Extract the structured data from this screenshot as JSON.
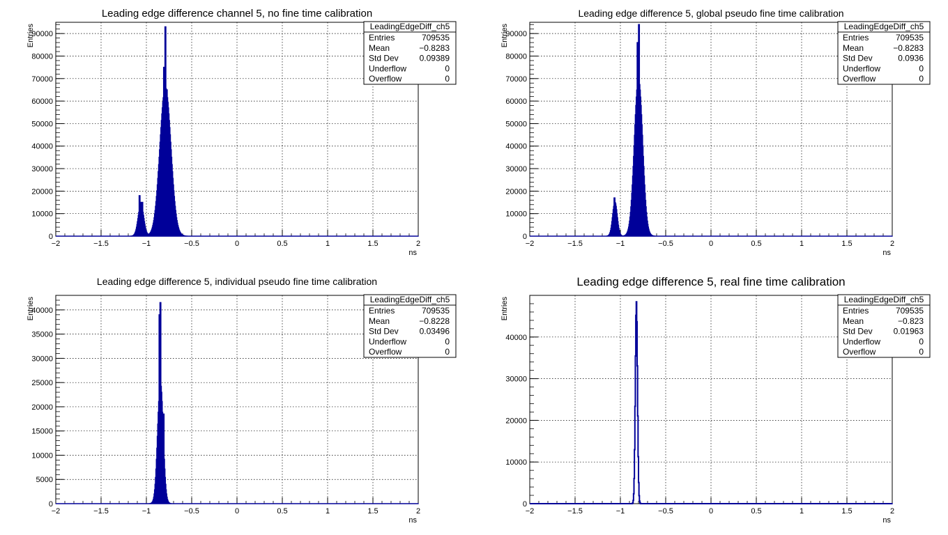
{
  "chart_data": [
    {
      "type": "bar",
      "title": "Leading edge difference channel 5, no fine time calibration",
      "xlabel": "ns",
      "ylabel": "Entries",
      "xlim": [
        -2,
        2
      ],
      "ylim": [
        0,
        95000
      ],
      "xticks": [
        "−2",
        "−1.5",
        "−1",
        "−0.5",
        "0",
        "0.5",
        "1",
        "1.5",
        "2"
      ],
      "yticks": [
        "0",
        "10000",
        "20000",
        "30000",
        "40000",
        "50000",
        "60000",
        "70000",
        "80000",
        "90000"
      ],
      "grid": true,
      "color": "#000099",
      "stats": {
        "name": "LeadingEdgeDiff_ch5",
        "rows": [
          {
            "label": "Entries",
            "value": "709535"
          },
          {
            "label": "Mean",
            "value": "−0.8283"
          },
          {
            "label": "Std Dev",
            "value": "0.09389"
          },
          {
            "label": "Underflow",
            "value": "0"
          },
          {
            "label": "Overflow",
            "value": "0"
          }
        ]
      },
      "peaks": [
        {
          "x": -1.06,
          "width": 0.03,
          "height": 14000
        },
        {
          "x": -0.79,
          "width": 0.06,
          "height": 66000
        }
      ],
      "spikes": [
        {
          "x": -1.075,
          "height": 18000
        },
        {
          "x": -1.055,
          "height": 15000
        },
        {
          "x": -1.045,
          "height": 15000
        },
        {
          "x": -0.79,
          "height": 93000
        },
        {
          "x": -0.775,
          "height": 65000
        },
        {
          "x": -0.765,
          "height": 57000
        },
        {
          "x": -0.805,
          "height": 75000
        }
      ]
    },
    {
      "type": "bar",
      "title": "Leading edge difference 5, global pseudo fine time calibration",
      "xlabel": "ns",
      "ylabel": "Entries",
      "xlim": [
        -2,
        2
      ],
      "ylim": [
        0,
        95000
      ],
      "xticks": [
        "−2",
        "−1.5",
        "−1",
        "−0.5",
        "0",
        "0.5",
        "1",
        "1.5",
        "2"
      ],
      "yticks": [
        "0",
        "10000",
        "20000",
        "30000",
        "40000",
        "50000",
        "60000",
        "70000",
        "80000",
        "90000"
      ],
      "grid": true,
      "color": "#000099",
      "stats": {
        "name": "LeadingEdgeDiff_ch5",
        "rows": [
          {
            "label": "Entries",
            "value": "709535"
          },
          {
            "label": "Mean",
            "value": "−0.8283"
          },
          {
            "label": "Std Dev",
            "value": "0.0936"
          },
          {
            "label": "Underflow",
            "value": "0"
          },
          {
            "label": "Overflow",
            "value": "0"
          }
        ]
      },
      "peaks": [
        {
          "x": -1.06,
          "width": 0.025,
          "height": 15000
        },
        {
          "x": -0.8,
          "width": 0.045,
          "height": 70000
        }
      ],
      "spikes": [
        {
          "x": -1.065,
          "height": 17000
        },
        {
          "x": -0.795,
          "height": 94000
        },
        {
          "x": -0.81,
          "height": 86000
        }
      ]
    },
    {
      "type": "bar",
      "title": "Leading edge difference 5, individual pseudo fine time calibration",
      "xlabel": "ns",
      "ylabel": "Entries",
      "xlim": [
        -2,
        2
      ],
      "ylim": [
        0,
        43000
      ],
      "xticks": [
        "−2",
        "−1.5",
        "−1",
        "−0.5",
        "0",
        "0.5",
        "1",
        "1.5",
        "2"
      ],
      "yticks": [
        "0",
        "5000",
        "10000",
        "15000",
        "20000",
        "25000",
        "30000",
        "35000",
        "40000"
      ],
      "grid": true,
      "color": "#000099",
      "stats": {
        "name": "LeadingEdgeDiff_ch5",
        "rows": [
          {
            "label": "Entries",
            "value": "709535"
          },
          {
            "label": "Mean",
            "value": "−0.8228"
          },
          {
            "label": "Std Dev",
            "value": "0.03496"
          },
          {
            "label": "Underflow",
            "value": "0"
          },
          {
            "label": "Overflow",
            "value": "0"
          }
        ]
      },
      "peaks": [
        {
          "x": -0.845,
          "width": 0.03,
          "height": 25000
        }
      ],
      "spikes": [
        {
          "x": -0.845,
          "height": 41500
        },
        {
          "x": -0.855,
          "height": 39000
        },
        {
          "x": -0.835,
          "height": 23000
        },
        {
          "x": -0.81,
          "height": 18500
        },
        {
          "x": -0.87,
          "height": 10000
        }
      ]
    },
    {
      "type": "line",
      "title": "Leading edge difference 5, real fine time calibration",
      "xlabel": "ns",
      "ylabel": "Entries",
      "xlim": [
        -2,
        2
      ],
      "ylim": [
        0,
        50000
      ],
      "xticks": [
        "−2",
        "−1.5",
        "−1",
        "−0.5",
        "0",
        "0.5",
        "1",
        "1.5",
        "2"
      ],
      "yticks": [
        "0",
        "10000",
        "20000",
        "30000",
        "40000"
      ],
      "grid": true,
      "color": "#000099",
      "stats": {
        "name": "LeadingEdgeDiff_ch5",
        "rows": [
          {
            "label": "Entries",
            "value": "709535"
          },
          {
            "label": "Mean",
            "value": "−0.823"
          },
          {
            "label": "Std Dev",
            "value": "0.01963"
          },
          {
            "label": "Underflow",
            "value": "0"
          },
          {
            "label": "Overflow",
            "value": "0"
          }
        ]
      },
      "peaks": [
        {
          "x": -0.823,
          "width": 0.012,
          "height": 48500
        }
      ],
      "spikes": []
    }
  ]
}
